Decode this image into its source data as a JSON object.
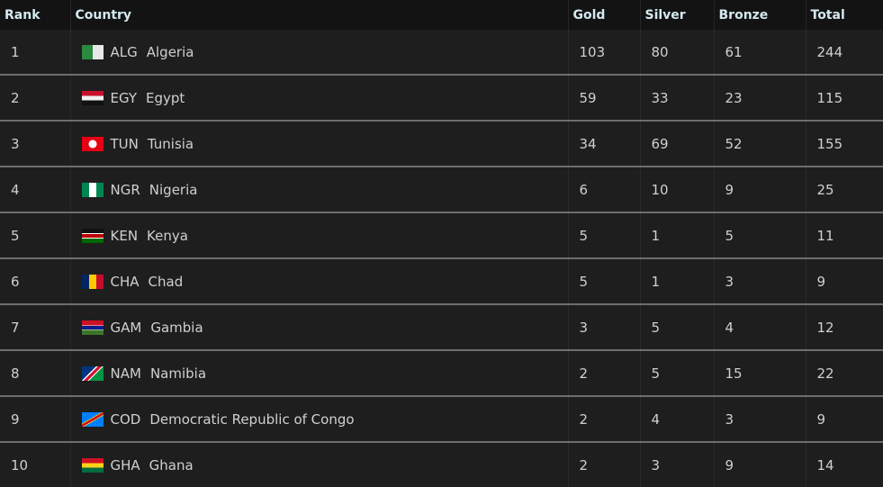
{
  "headers": {
    "rank": "Rank",
    "country": "Country",
    "gold": "Gold",
    "silver": "Silver",
    "bronze": "Bronze",
    "total": "Total"
  },
  "rows": [
    {
      "rank": "1",
      "code": "ALG",
      "name": "Algeria",
      "gold": "103",
      "silver": "80",
      "bronze": "61",
      "total": "244",
      "flag": "linear-gradient(90deg,#2a8a3e 50%,#e8e8e8 50%)"
    },
    {
      "rank": "2",
      "code": "EGY",
      "name": "Egypt",
      "gold": "59",
      "silver": "33",
      "bronze": "23",
      "total": "115",
      "flag": "linear-gradient(#c8102e 33%,#f0f0f0 33% 66%,#111 66%)"
    },
    {
      "rank": "3",
      "code": "TUN",
      "name": "Tunisia",
      "gold": "34",
      "silver": "69",
      "bronze": "52",
      "total": "155",
      "flag": "radial-gradient(circle,#fff 30%,#e70013 32%)"
    },
    {
      "rank": "4",
      "code": "NGR",
      "name": "Nigeria",
      "gold": "6",
      "silver": "10",
      "bronze": "9",
      "total": "25",
      "flag": "linear-gradient(90deg,#008751 33%,#fff 33% 66%,#008751 66%)"
    },
    {
      "rank": "5",
      "code": "KEN",
      "name": "Kenya",
      "gold": "5",
      "silver": "1",
      "bronze": "5",
      "total": "11",
      "flag": "linear-gradient(#111 30%,#fff 30% 36%,#bb0000 36% 64%,#fff 64% 70%,#006600 70%)"
    },
    {
      "rank": "6",
      "code": "CHA",
      "name": "Chad",
      "gold": "5",
      "silver": "1",
      "bronze": "3",
      "total": "9",
      "flag": "linear-gradient(90deg,#002664 33%,#fecb00 33% 66%,#c60c30 66%)"
    },
    {
      "rank": "7",
      "code": "GAM",
      "name": "Gambia",
      "gold": "3",
      "silver": "5",
      "bronze": "4",
      "total": "12",
      "flag": "linear-gradient(#ce1126 33%,#fff 33% 38%,#0c1c8c 38% 62%,#fff 62% 67%,#3a7728 67%)"
    },
    {
      "rank": "8",
      "code": "NAM",
      "name": "Namibia",
      "gold": "2",
      "silver": "5",
      "bronze": "15",
      "total": "22",
      "flag": "linear-gradient(135deg,#003580 40%,#fff 40% 44%,#d21034 44% 56%,#fff 56% 60%,#009543 60%)"
    },
    {
      "rank": "9",
      "code": "COD",
      "name": "Democratic Republic of Congo",
      "gold": "2",
      "silver": "4",
      "bronze": "3",
      "total": "9",
      "flag": "linear-gradient(150deg,#007fff 42%,#f7d618 42% 45%,#ce1021 45% 55%,#f7d618 55% 58%,#007fff 58%)"
    },
    {
      "rank": "10",
      "code": "GHA",
      "name": "Ghana",
      "gold": "2",
      "silver": "3",
      "bronze": "9",
      "total": "14",
      "flag": "linear-gradient(#ce1126 33%,#fcd116 33% 66%,#006b3f 66%)"
    }
  ]
}
